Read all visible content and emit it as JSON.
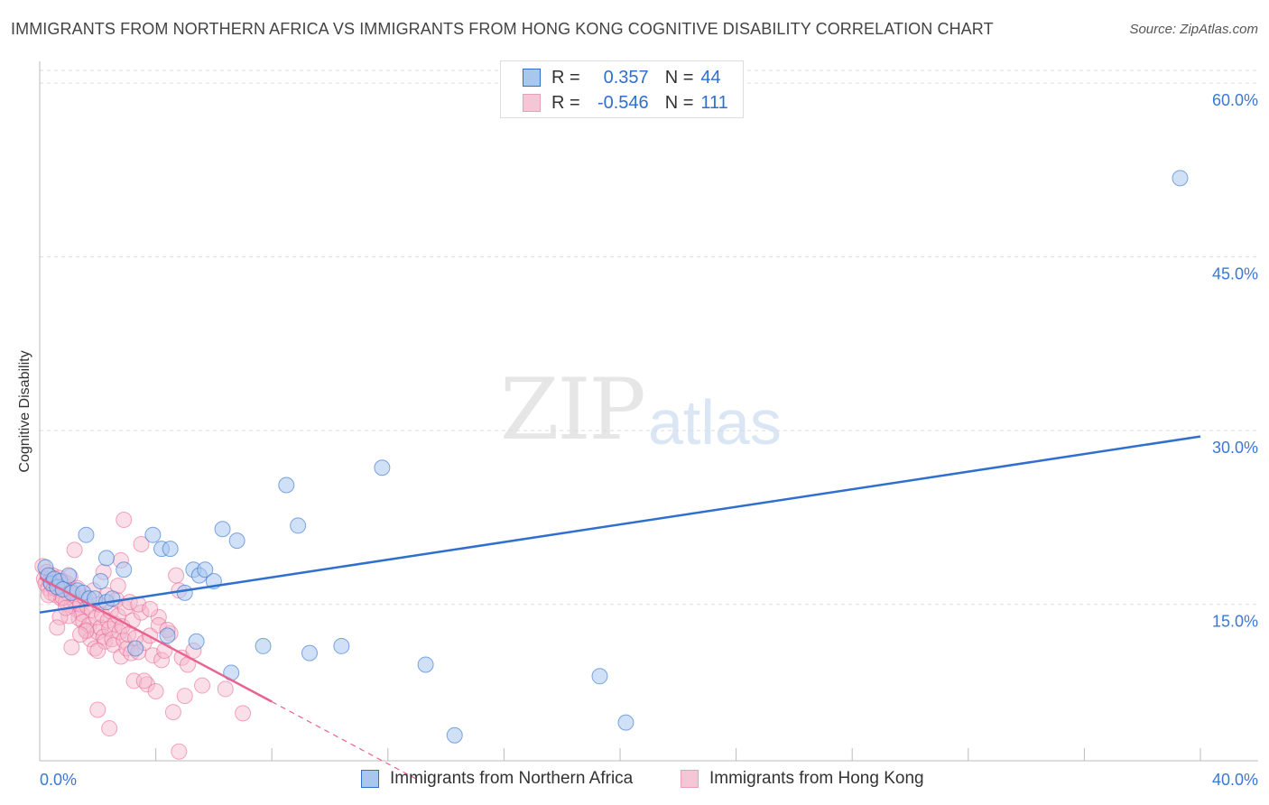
{
  "title": "IMMIGRANTS FROM NORTHERN AFRICA VS IMMIGRANTS FROM HONG KONG COGNITIVE DISABILITY CORRELATION CHART",
  "source": "Source: ZipAtlas.com",
  "watermark": {
    "zip": "ZIP",
    "atlas": "atlas"
  },
  "legend": {
    "rows": [
      {
        "r_label": "R =",
        "r_value": "0.357",
        "n_label": "N =",
        "n_value": "44"
      },
      {
        "r_label": "R =",
        "r_value": "-0.546",
        "n_label": "N =",
        "n_value": "111"
      }
    ]
  },
  "bottom_legend": {
    "blue": "Immigrants from Northern Africa",
    "pink": "Immigrants from Hong Kong"
  },
  "colors": {
    "blue": "#2f6fce",
    "blue_fill": "#a9c7ee",
    "pink": "#e8638f",
    "pink_fill": "#f5b8cb",
    "grid": "#dddddd",
    "axis_text": "#3a78d4"
  },
  "chart_data": {
    "type": "scatter",
    "title": "IMMIGRANTS FROM NORTHERN AFRICA VS IMMIGRANTS FROM HONG KONG COGNITIVE DISABILITY CORRELATION CHART",
    "xlabel": "",
    "ylabel": "Cognitive Disability",
    "xlim": [
      0,
      40
    ],
    "ylim": [
      1.5,
      62.5
    ],
    "x_tick_labels": [
      "0.0%",
      "40.0%"
    ],
    "y_ticks": [
      15,
      30,
      45,
      60
    ],
    "y_tick_labels": [
      "15.0%",
      "30.0%",
      "45.0%",
      "60.0%"
    ],
    "grid": true,
    "series": [
      {
        "name": "Immigrants from Northern Africa",
        "color": "#2f6fce",
        "points": [
          [
            0.2,
            18.2
          ],
          [
            0.3,
            17.5
          ],
          [
            0.4,
            16.8
          ],
          [
            0.5,
            17.2
          ],
          [
            0.6,
            16.5
          ],
          [
            0.7,
            17.0
          ],
          [
            0.8,
            16.3
          ],
          [
            1.0,
            17.5
          ],
          [
            1.1,
            16.0
          ],
          [
            1.3,
            16.2
          ],
          [
            1.5,
            16.0
          ],
          [
            1.7,
            15.5
          ],
          [
            1.9,
            15.5
          ],
          [
            2.1,
            17.0
          ],
          [
            2.3,
            15.2
          ],
          [
            2.5,
            15.5
          ],
          [
            2.9,
            18.0
          ],
          [
            2.3,
            19.0
          ],
          [
            1.6,
            21.0
          ],
          [
            3.9,
            21.0
          ],
          [
            4.2,
            19.8
          ],
          [
            4.5,
            19.8
          ],
          [
            5.3,
            18.0
          ],
          [
            5.5,
            17.5
          ],
          [
            5.7,
            18.0
          ],
          [
            6.0,
            17.0
          ],
          [
            5.0,
            16.0
          ],
          [
            6.3,
            21.5
          ],
          [
            6.8,
            20.5
          ],
          [
            8.5,
            25.3
          ],
          [
            8.9,
            21.8
          ],
          [
            11.8,
            26.8
          ],
          [
            9.3,
            10.8
          ],
          [
            10.4,
            11.4
          ],
          [
            4.4,
            12.3
          ],
          [
            5.4,
            11.8
          ],
          [
            6.6,
            9.1
          ],
          [
            7.7,
            11.4
          ],
          [
            3.3,
            11.2
          ],
          [
            13.3,
            9.8
          ],
          [
            14.3,
            3.7
          ],
          [
            19.3,
            8.8
          ],
          [
            20.2,
            4.8
          ],
          [
            39.3,
            51.8
          ]
        ],
        "trend": {
          "x": [
            0,
            40
          ],
          "y": [
            14.3,
            29.5
          ]
        }
      },
      {
        "name": "Immigrants from Hong Kong",
        "color": "#e8638f",
        "points": [
          [
            0.1,
            18.3
          ],
          [
            0.15,
            17.2
          ],
          [
            0.2,
            16.8
          ],
          [
            0.25,
            17.8
          ],
          [
            0.3,
            16.4
          ],
          [
            0.35,
            17.0
          ],
          [
            0.4,
            16.0
          ],
          [
            0.45,
            17.5
          ],
          [
            0.5,
            16.5
          ],
          [
            0.55,
            15.8
          ],
          [
            0.6,
            16.9
          ],
          [
            0.65,
            17.3
          ],
          [
            0.7,
            16.2
          ],
          [
            0.75,
            15.5
          ],
          [
            0.8,
            17.0
          ],
          [
            0.85,
            16.6
          ],
          [
            0.9,
            15.2
          ],
          [
            0.95,
            16.8
          ],
          [
            1.0,
            15.9
          ],
          [
            1.05,
            17.4
          ],
          [
            1.1,
            14.9
          ],
          [
            1.15,
            16.1
          ],
          [
            1.2,
            15.3
          ],
          [
            1.25,
            14.6
          ],
          [
            1.3,
            16.4
          ],
          [
            1.35,
            13.8
          ],
          [
            1.4,
            15.0
          ],
          [
            1.45,
            14.2
          ],
          [
            1.5,
            13.5
          ],
          [
            1.55,
            15.6
          ],
          [
            1.6,
            12.8
          ],
          [
            1.65,
            14.8
          ],
          [
            1.7,
            13.2
          ],
          [
            1.75,
            12.0
          ],
          [
            1.8,
            14.5
          ],
          [
            1.85,
            16.2
          ],
          [
            1.9,
            11.2
          ],
          [
            1.95,
            13.9
          ],
          [
            2.0,
            12.6
          ],
          [
            2.05,
            15.0
          ],
          [
            2.1,
            13.0
          ],
          [
            2.15,
            14.1
          ],
          [
            2.2,
            12.2
          ],
          [
            2.25,
            11.8
          ],
          [
            2.3,
            15.8
          ],
          [
            2.35,
            13.6
          ],
          [
            2.4,
            12.9
          ],
          [
            2.45,
            14.4
          ],
          [
            2.5,
            12.0
          ],
          [
            2.55,
            11.5
          ],
          [
            2.6,
            13.3
          ],
          [
            2.65,
            15.4
          ],
          [
            2.7,
            14.0
          ],
          [
            2.75,
            12.6
          ],
          [
            2.8,
            10.5
          ],
          [
            2.85,
            13.1
          ],
          [
            2.9,
            11.9
          ],
          [
            2.95,
            14.7
          ],
          [
            3.0,
            11.2
          ],
          [
            3.05,
            12.4
          ],
          [
            3.1,
            15.2
          ],
          [
            3.15,
            10.8
          ],
          [
            3.2,
            13.6
          ],
          [
            3.25,
            8.4
          ],
          [
            3.3,
            12.1
          ],
          [
            3.4,
            10.9
          ],
          [
            3.5,
            14.3
          ],
          [
            3.6,
            11.7
          ],
          [
            3.7,
            8.1
          ],
          [
            3.8,
            12.3
          ],
          [
            3.9,
            10.6
          ],
          [
            4.0,
            7.5
          ],
          [
            4.1,
            13.9
          ],
          [
            4.2,
            10.2
          ],
          [
            4.3,
            11.0
          ],
          [
            4.5,
            12.5
          ],
          [
            4.6,
            5.7
          ],
          [
            4.8,
            16.2
          ],
          [
            4.9,
            10.4
          ],
          [
            5.0,
            7.1
          ],
          [
            5.1,
            9.8
          ],
          [
            5.3,
            11.0
          ],
          [
            5.6,
            8.0
          ],
          [
            6.4,
            7.7
          ],
          [
            7.0,
            5.6
          ],
          [
            4.8,
            2.3
          ],
          [
            2.4,
            4.3
          ],
          [
            2.0,
            5.9
          ],
          [
            1.2,
            19.7
          ],
          [
            2.8,
            18.8
          ],
          [
            2.9,
            22.3
          ],
          [
            3.5,
            20.2
          ],
          [
            0.8,
            15.6
          ],
          [
            0.5,
            16.4
          ],
          [
            1.0,
            14.0
          ],
          [
            1.6,
            12.7
          ],
          [
            2.2,
            17.8
          ],
          [
            2.7,
            16.6
          ],
          [
            3.4,
            15.0
          ],
          [
            3.8,
            14.6
          ],
          [
            4.1,
            13.2
          ],
          [
            4.4,
            12.8
          ],
          [
            4.7,
            17.5
          ],
          [
            1.1,
            11.3
          ],
          [
            0.7,
            13.9
          ],
          [
            1.4,
            12.4
          ],
          [
            2.0,
            11.0
          ],
          [
            3.6,
            8.4
          ],
          [
            0.3,
            15.8
          ],
          [
            0.9,
            14.7
          ],
          [
            0.6,
            13.0
          ]
        ],
        "trend": {
          "x": [
            0,
            8
          ],
          "y": [
            17.3,
            6.6
          ]
        },
        "trend_dashed": {
          "x": [
            8,
            13
          ],
          "y": [
            6.6,
            -0.1
          ]
        }
      }
    ]
  }
}
